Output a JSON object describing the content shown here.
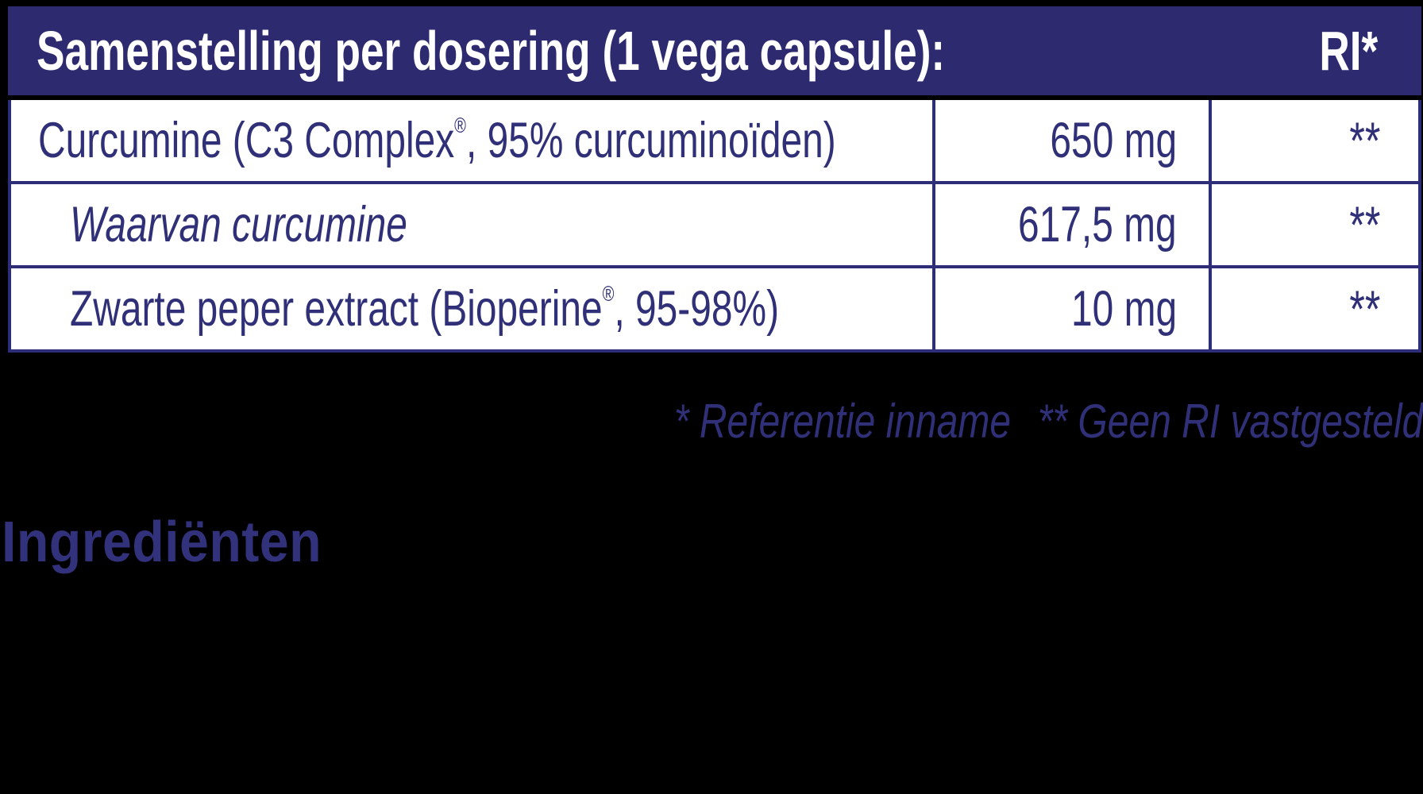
{
  "colors": {
    "page_bg": "#000000",
    "header_bg": "#2e2a70",
    "header_text": "#ffffff",
    "row_bg": "#ffffff",
    "border_navy": "#2e2e78",
    "text_navy": "#303078",
    "heading": "#32327c"
  },
  "table": {
    "header": {
      "title": "Samenstelling per dosering (1 vega capsule):",
      "ri_label": "RI*"
    },
    "rows": [
      {
        "name_pre": "Curcumine (C3 Complex",
        "name_reg": "®",
        "name_post": ", 95% curcuminoïden)",
        "amount": "650 mg",
        "ri": "**"
      },
      {
        "name_pre": "Waarvan curcumine",
        "name_reg": "",
        "name_post": "",
        "amount": "617,5 mg",
        "ri": "**"
      },
      {
        "name_pre": "Zwarte peper extract (Bioperine",
        "name_reg": "®",
        "name_post": ", 95-98%)",
        "amount": "10 mg",
        "ri": "**"
      }
    ]
  },
  "footnotes": {
    "reference": "* Referentie inname",
    "no_ri": "** Geen RI vastgesteld"
  },
  "section_heading": "Ingrediënten"
}
